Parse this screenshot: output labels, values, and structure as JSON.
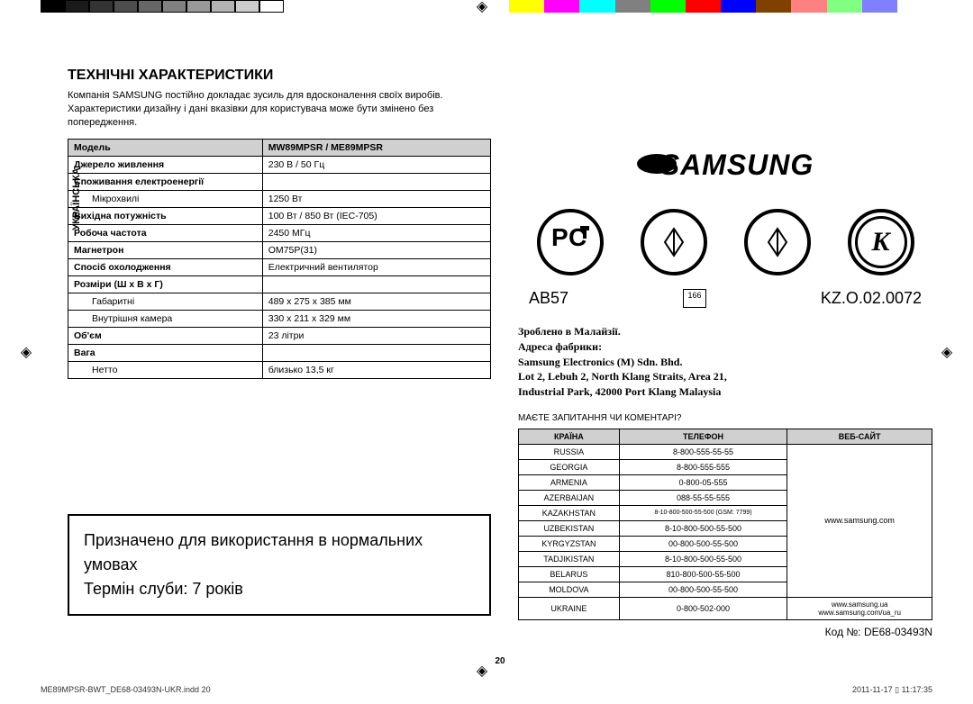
{
  "colorBars": {
    "left": [
      "#000000",
      "#1a1a1a",
      "#333333",
      "#4d4d4d",
      "#666666",
      "#808080",
      "#999999",
      "#b3b3b3",
      "#cccccc",
      "#ffffff"
    ],
    "right": [
      "#ffff00",
      "#ff00ff",
      "#00ffff",
      "#808080",
      "#00ff00",
      "#ff0000",
      "#0000ff",
      "#804000",
      "#ff8080",
      "#80ff80",
      "#8080ff",
      "#ffffff"
    ]
  },
  "sidebarLabel": "УКРАЇНСЬКА",
  "sectionTitle": "ТЕХНІЧНІ ХАРАКТЕРИСТИКИ",
  "introText": "Компанія SAMSUNG постійно докладає зусиль для вдосконалення своїх виробів. Характеристики дизайну і дані вказівки для користувача може бути змінено без попередження.",
  "specs": {
    "headerLabel": "Модель",
    "headerValue": "MW89MPSR / ME89MPSR",
    "rows": [
      {
        "label": "Джерело живлення",
        "value": "230 В / 50 Гц"
      },
      {
        "label": "Споживання електроенергії",
        "sub": [
          {
            "label": "Мікрохвилі",
            "value": "1250 Вт"
          }
        ]
      },
      {
        "label": "Вихідна потужність",
        "value": "100 Вт / 850 Вт (IEC-705)"
      },
      {
        "label": "Робоча частота",
        "value": "2450 МГц"
      },
      {
        "label": "Магнетрон",
        "value": "OM75P(31)"
      },
      {
        "label": "Спосіб охолодження",
        "value": "Електричний вентилятор"
      },
      {
        "label": "Розміри (Ш х В х Г)",
        "sub": [
          {
            "label": "Габаритні",
            "value": "489 x 275 x 385 мм"
          },
          {
            "label": "Внутрішня камера",
            "value": "330 x 211 x 329 мм"
          }
        ]
      },
      {
        "label": "Об'єм",
        "value": "23 літри"
      },
      {
        "label": "Вага",
        "sub": [
          {
            "label": "Нетто",
            "value": "близько 13,5 кг"
          }
        ]
      }
    ]
  },
  "usageBox": {
    "line1": "Призначено для використання в нормальних умовах",
    "line2": "Термін слуби: 7 років"
  },
  "logo": "SAMSUNG",
  "certs": {
    "left": "AB57",
    "mid": "166",
    "right": "KZ.O.02.0072"
  },
  "address": {
    "line1": "Зроблено в Малайзії.",
    "line2": "Адреса фабрики:",
    "line3": "Samsung Electronics (M) Sdn. Bhd.",
    "line4": "Lot 2, Lebuh 2, North Klang Straits, Area 21,",
    "line5": "Industrial Park, 42000 Port Klang Malaysia"
  },
  "questionsLine": "МАЄТЕ ЗАПИТАННЯ ЧИ КОМЕНТАРІ?",
  "contactTable": {
    "headers": [
      "КРАЇНА",
      "ТЕЛЕФОН",
      "ВЕБ-САЙТ"
    ],
    "rows": [
      {
        "country": "RUSSIA",
        "phone": "8-800-555-55-55"
      },
      {
        "country": "GEORGIA",
        "phone": "8-800-555-555"
      },
      {
        "country": "ARMENIA",
        "phone": "0-800-05-555"
      },
      {
        "country": "AZERBAIJAN",
        "phone": "088-55-55-555"
      },
      {
        "country": "KAZAKHSTAN",
        "phone": "8-10-800-500-55-500 (GSM: 7799)"
      },
      {
        "country": "UZBEKISTAN",
        "phone": "8-10-800-500-55-500"
      },
      {
        "country": "KYRGYZSTAN",
        "phone": "00-800-500-55-500"
      },
      {
        "country": "TADJIKISTAN",
        "phone": "8-10-800-500-55-500"
      },
      {
        "country": "BELARUS",
        "phone": "810-800-500-55-500"
      },
      {
        "country": "MOLDOVA",
        "phone": "00-800-500-55-500"
      }
    ],
    "mainWeb": "www.samsung.com",
    "ukraineRow": {
      "country": "UKRAINE",
      "phone": "0-800-502-000",
      "web1": "www.samsung.ua",
      "web2": "www.samsung.com/ua_ru"
    }
  },
  "codeLine": "Код №: DE68-03493N",
  "pageNum": "20",
  "footer": {
    "left": "ME89MPSR-BWT_DE68-03493N-UKR.indd   20",
    "right": "2011-11-17   ▯ 11:17:35"
  }
}
